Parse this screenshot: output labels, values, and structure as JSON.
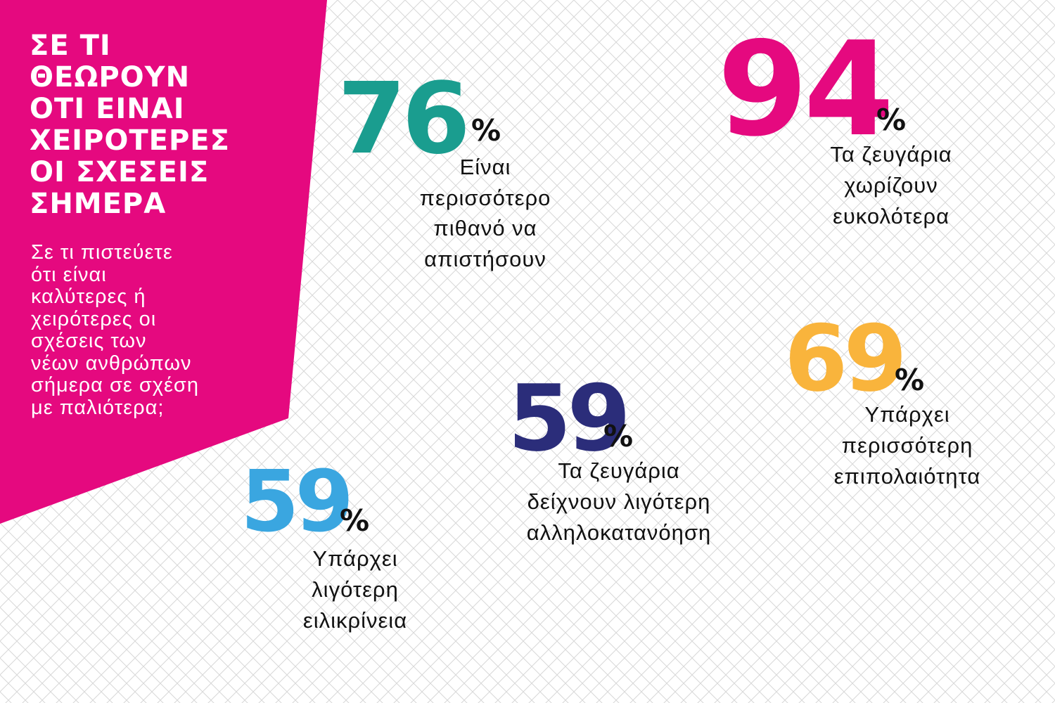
{
  "header": {
    "title_lines": [
      "ΣΕ ΤΙ",
      "ΘΕΩΡΟΥΝ",
      "ΟΤΙ ΕΙΝΑΙ",
      "ΧΕΙΡΟΤΕΡΕΣ",
      "ΟΙ ΣΧΕΣΕΙΣ",
      "ΣΗΜΕΡΑ"
    ],
    "question_lines": [
      "Σε τι πιστεύετε",
      "ότι είναι",
      "καλύτερες ή",
      "χειρότερες οι",
      "σχέσεις των",
      "νέων ανθρώπων",
      "σήμερα σε σχέση",
      "με παλιότερα;"
    ]
  },
  "stats": [
    {
      "value": 76,
      "unit": "%",
      "label_lines": [
        "Είναι",
        "περισσότερο",
        "πιθανό να",
        "απιστήσουν"
      ]
    },
    {
      "value": 94,
      "unit": "%",
      "label_lines": [
        "Τα ζευγάρια",
        "χωρίζουν",
        "ευκολότερα"
      ]
    },
    {
      "value": 69,
      "unit": "%",
      "label_lines": [
        "Υπάρχει",
        "περισσότερη",
        "επιπολαιότητα"
      ]
    },
    {
      "value": 59,
      "unit": "%",
      "label_lines": [
        "Τα ζευγάρια",
        "δείχνουν λιγότερη",
        "αλληλοκατανόηση"
      ]
    },
    {
      "value": 59,
      "unit": "%",
      "label_lines": [
        "Υπάρχει",
        "λιγότερη",
        "ειλικρίνεια"
      ]
    }
  ]
}
